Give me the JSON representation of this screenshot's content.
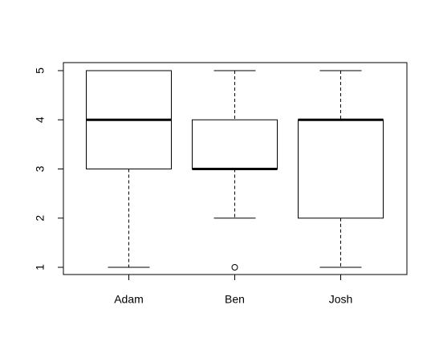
{
  "chart_data": {
    "type": "boxplot",
    "categories": [
      "Adam",
      "Ben",
      "Josh"
    ],
    "boxes": [
      {
        "category": "Adam",
        "min": 1,
        "q1": 3,
        "median": 4,
        "q3": 5,
        "max": 5,
        "outliers": []
      },
      {
        "category": "Ben",
        "min": 2,
        "q1": 3,
        "median": 3,
        "q3": 4,
        "max": 5,
        "outliers": [
          1
        ]
      },
      {
        "category": "Josh",
        "min": 1,
        "q1": 2,
        "median": 4,
        "q3": 4,
        "max": 5,
        "outliers": []
      }
    ],
    "yticks": [
      "1",
      "2",
      "3",
      "4",
      "5"
    ],
    "ylim": [
      0.85,
      5.15
    ],
    "title": "",
    "xlabel": "",
    "ylabel": "",
    "grid": false,
    "colors": {
      "box_stroke": "#000000",
      "box_fill": "#ffffff",
      "background": "#ffffff"
    }
  }
}
